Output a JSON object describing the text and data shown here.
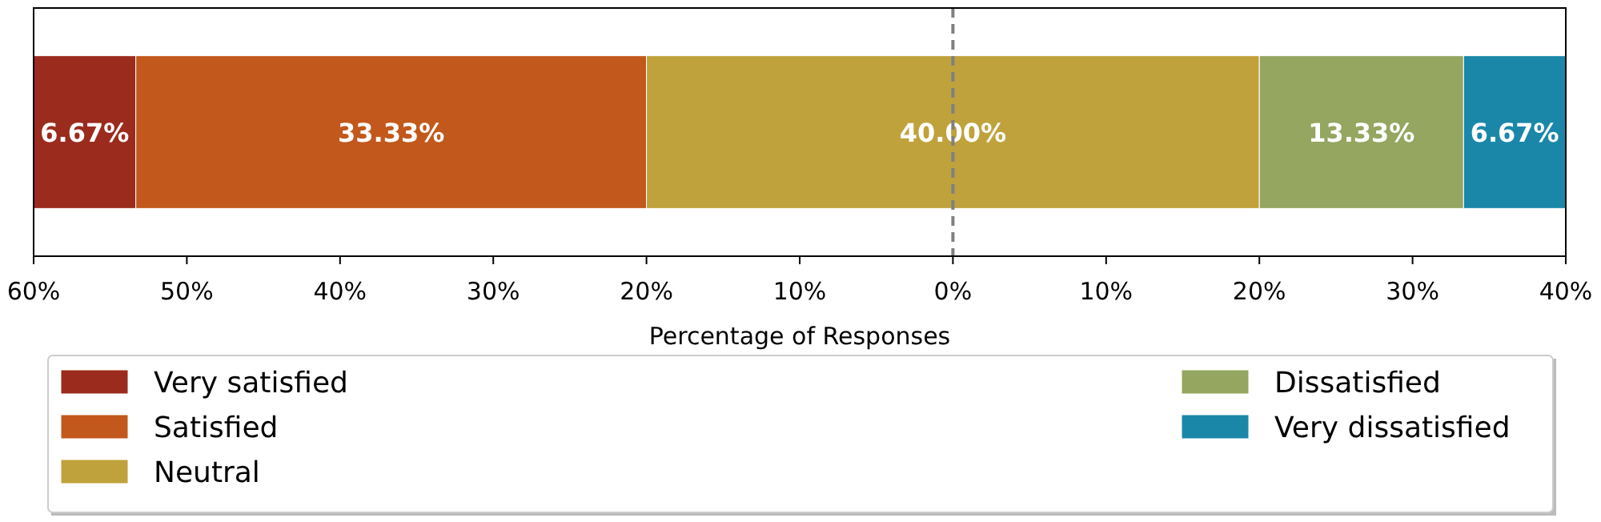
{
  "chart_data": {
    "type": "bar",
    "orientation": "horizontal",
    "xlabel": "Percentage of Responses",
    "categories": [
      null
    ],
    "series": [
      {
        "name": "Very satisfied",
        "color": "#9b2b1d",
        "values": [
          6.67
        ],
        "base": [
          -60
        ],
        "value_labels": [
          "6.67%"
        ]
      },
      {
        "name": "Satisfied",
        "color": "#c2581b",
        "values": [
          33.33
        ],
        "base": [
          -53.33
        ],
        "value_labels": [
          "33.33%"
        ]
      },
      {
        "name": "Neutral",
        "color": "#bfa23b",
        "values": [
          40
        ],
        "base": [
          -20
        ],
        "value_labels": [
          "40.00%"
        ]
      },
      {
        "name": "Dissatisfied",
        "color": "#94a660",
        "values": [
          13.33
        ],
        "base": [
          20
        ],
        "value_labels": [
          "13.33%"
        ]
      },
      {
        "name": "Very dissatisfied",
        "color": "#1a87a9",
        "values": [
          6.67
        ],
        "base": [
          33.33
        ],
        "value_labels": [
          "6.67%"
        ]
      }
    ],
    "xlim": [
      -60,
      40
    ],
    "xticks": [
      {
        "value": -60,
        "label": "60%"
      },
      {
        "value": -50,
        "label": "50%"
      },
      {
        "value": -40,
        "label": "40%"
      },
      {
        "value": -30,
        "label": "30%"
      },
      {
        "value": -20,
        "label": "20%"
      },
      {
        "value": -10,
        "label": "10%"
      },
      {
        "value": 0,
        "label": "0%"
      },
      {
        "value": 10,
        "label": "10%"
      },
      {
        "value": 20,
        "label": "20%"
      },
      {
        "value": 30,
        "label": "30%"
      },
      {
        "value": 40,
        "label": "40%"
      }
    ],
    "ref_lines": [
      {
        "axis": "x",
        "value": 0,
        "color": "#808080",
        "line_style": "dashed"
      }
    ],
    "tick_labels": "x",
    "grid": false,
    "legend": "bottom"
  }
}
